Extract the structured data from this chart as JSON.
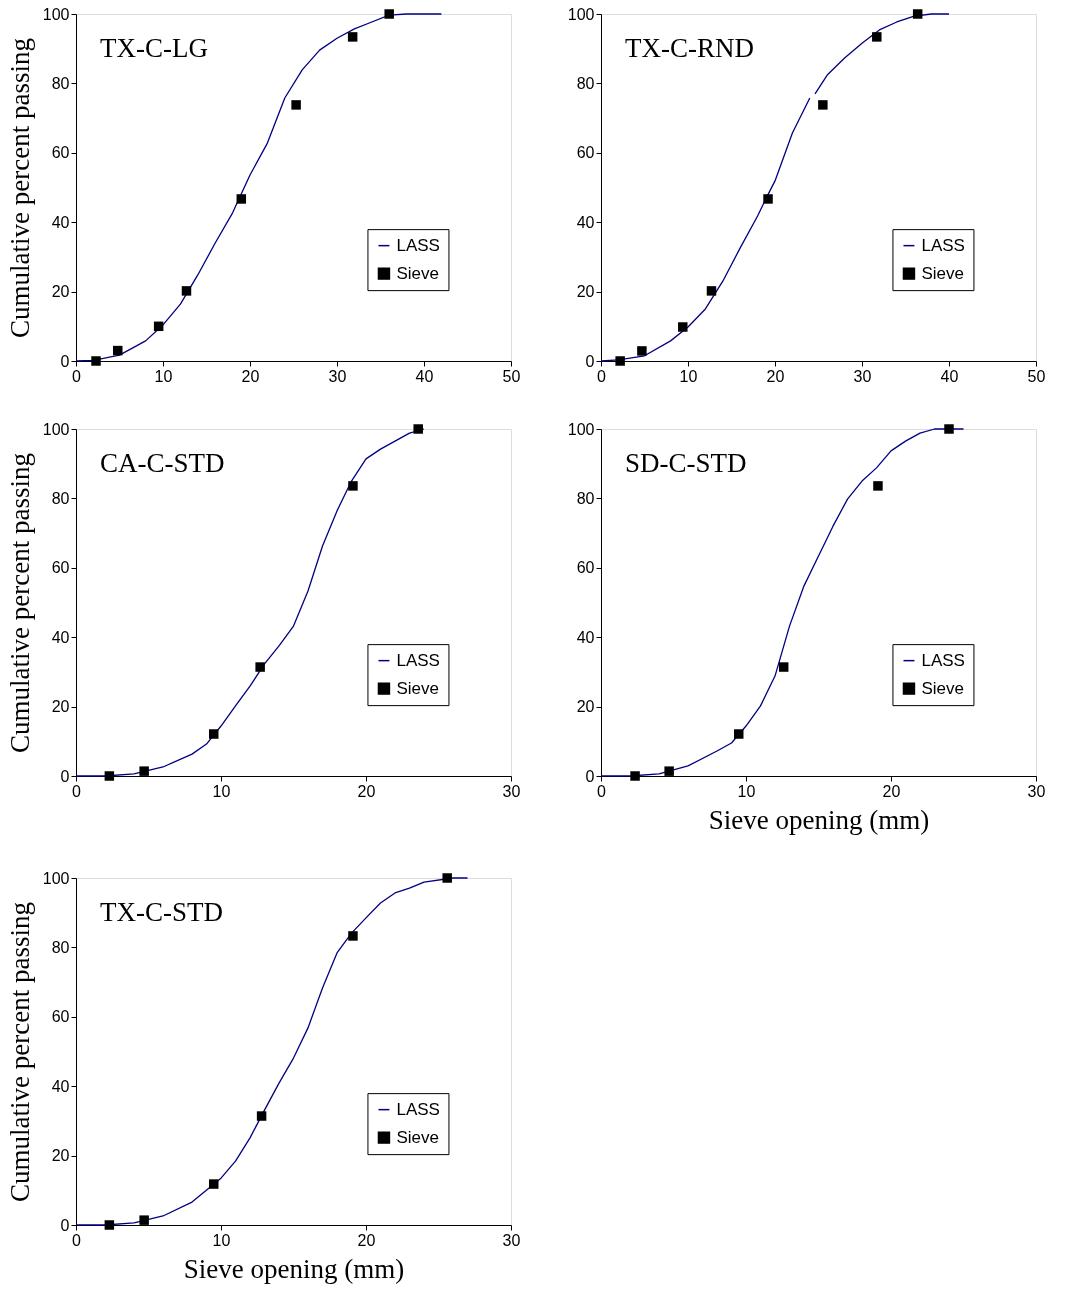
{
  "chart_data": [
    {
      "type": "line",
      "title": "TX-C-LG",
      "ylabel": "Cumulative percent passing",
      "xlim": [
        0,
        50
      ],
      "xticks": [
        0,
        10,
        20,
        30,
        40,
        50
      ],
      "ylim": [
        0,
        100
      ],
      "yticks": [
        0,
        20,
        40,
        60,
        80,
        100
      ],
      "grid": false,
      "legend": "right",
      "series": [
        {
          "name": "LASS",
          "color": "#000080",
          "marker": "none",
          "line_style": "solid",
          "x": [
            0,
            2,
            5,
            8,
            10,
            12,
            14,
            16,
            18,
            20,
            22,
            24,
            26,
            28,
            30,
            32,
            34,
            36,
            38,
            42
          ],
          "values": [
            0,
            0.2,
            1.7,
            5.8,
            10.4,
            16.4,
            24.8,
            34,
            42.7,
            53.6,
            62.8,
            75.8,
            83.9,
            89.6,
            93,
            95.7,
            97.7,
            99.7,
            100,
            100
          ]
        },
        {
          "name": "Sieve",
          "type": "scatter",
          "color": "#000000",
          "marker": "square",
          "x": [
            2.3,
            4.8,
            9.5,
            12.7,
            19,
            25.3,
            31.8,
            36
          ],
          "values": [
            0,
            3,
            10,
            20.2,
            46.7,
            73.8,
            93.4,
            100
          ]
        }
      ]
    },
    {
      "type": "line",
      "title": "TX-C-RND",
      "xlim": [
        0,
        50
      ],
      "xticks": [
        0,
        10,
        20,
        30,
        40,
        50
      ],
      "ylim": [
        0,
        100
      ],
      "yticks": [
        0,
        20,
        40,
        60,
        80,
        100
      ],
      "grid": false,
      "legend": "right",
      "series": [
        {
          "name": "LASS",
          "color": "#000080",
          "marker": "none",
          "line_style": "solid",
          "x": [
            0,
            2,
            5,
            8,
            10,
            12,
            14,
            16,
            18,
            19,
            20,
            22,
            24,
            24.3,
            24.6,
            26,
            28,
            30,
            32,
            34,
            36,
            38,
            40
          ],
          "values": [
            0,
            0.3,
            1.5,
            5.8,
            9.8,
            15,
            23,
            32.6,
            41.8,
            47,
            51.9,
            65.7,
            75.8,
            null,
            77,
            82.4,
            87.3,
            91.6,
            95.4,
            97.7,
            99.4,
            100,
            100
          ]
        },
        {
          "name": "Sieve",
          "type": "scatter",
          "color": "#000000",
          "marker": "square",
          "x": [
            2.2,
            4.7,
            9.4,
            12.7,
            19.2,
            25.5,
            31.7,
            36.4
          ],
          "values": [
            0,
            2.9,
            9.8,
            20.2,
            46.7,
            73.8,
            93.4,
            100
          ]
        }
      ]
    },
    {
      "type": "line",
      "title": "CA-C-STD",
      "ylabel": "Cumulative percent passing",
      "xlim": [
        0,
        30
      ],
      "xticks": [
        0,
        10,
        20,
        30
      ],
      "ylim": [
        0,
        100
      ],
      "yticks": [
        0,
        20,
        40,
        60,
        80,
        100
      ],
      "grid": false,
      "legend": "right",
      "series": [
        {
          "name": "LASS",
          "color": "#000080",
          "marker": "none",
          "line_style": "solid",
          "x": [
            0,
            2,
            4,
            6,
            8,
            9,
            10,
            11,
            12,
            13,
            14,
            15,
            16,
            17,
            18,
            19,
            20,
            21,
            22,
            23,
            24
          ],
          "values": [
            0,
            0,
            0.6,
            2.6,
            6.3,
            9.2,
            14.4,
            20.2,
            25.9,
            32.3,
            37.5,
            43.2,
            53.3,
            66.3,
            76.4,
            85,
            91.4,
            94.2,
            96.5,
            98.8,
            100
          ]
        },
        {
          "name": "Sieve",
          "type": "scatter",
          "color": "#000000",
          "marker": "square",
          "x": [
            2.3,
            4.7,
            9.5,
            12.7,
            19.1,
            23.6
          ],
          "values": [
            0,
            1.4,
            12.1,
            31.4,
            83.6,
            100
          ]
        }
      ]
    },
    {
      "type": "line",
      "title": "SD-C-STD",
      "xlabel": "Sieve opening (mm)",
      "xlim": [
        0,
        30
      ],
      "xticks": [
        0,
        10,
        20,
        30
      ],
      "ylim": [
        0,
        100
      ],
      "yticks": [
        0,
        20,
        40,
        60,
        80,
        100
      ],
      "grid": false,
      "legend": "right",
      "series": [
        {
          "name": "LASS",
          "color": "#000080",
          "marker": "none",
          "line_style": "solid",
          "x": [
            0,
            2,
            4,
            6,
            8,
            9,
            10,
            11,
            12,
            13,
            14,
            15,
            16,
            17,
            18,
            19,
            20,
            21,
            22,
            23,
            25
          ],
          "values": [
            0,
            0,
            0.6,
            2.9,
            7.2,
            9.5,
            14.4,
            20.2,
            28.8,
            43.2,
            54.8,
            63.4,
            72,
            79.8,
            85,
            88.8,
            93.7,
            96.5,
            98.8,
            100,
            100
          ]
        },
        {
          "name": "Sieve",
          "type": "scatter",
          "color": "#000000",
          "marker": "square",
          "x": [
            2.35,
            4.7,
            9.5,
            12.6,
            19.1,
            24
          ],
          "values": [
            0,
            1.4,
            12.1,
            31.4,
            83.6,
            100
          ]
        }
      ]
    },
    {
      "type": "line",
      "title": "TX-C-STD",
      "ylabel": "Cumulative percent passing",
      "xlabel": "Sieve opening (mm)",
      "xlim": [
        0,
        30
      ],
      "xticks": [
        0,
        10,
        20,
        30
      ],
      "ylim": [
        0,
        100
      ],
      "yticks": [
        0,
        20,
        40,
        60,
        80,
        100
      ],
      "grid": false,
      "legend": "right",
      "series": [
        {
          "name": "LASS",
          "color": "#000080",
          "marker": "none",
          "line_style": "solid",
          "x": [
            0,
            2,
            4,
            6,
            8,
            10,
            11,
            12,
            13,
            14,
            15,
            16,
            17,
            18,
            19,
            20,
            21,
            22,
            23,
            24,
            26,
            27
          ],
          "values": [
            0,
            0,
            0.6,
            2.6,
            6.6,
            13.5,
            18.4,
            25.1,
            33.1,
            40.9,
            48.1,
            56.8,
            68.3,
            78.4,
            84.1,
            88.5,
            92.8,
            95.7,
            97.1,
            98.8,
            100,
            100
          ]
        },
        {
          "name": "Sieve",
          "type": "scatter",
          "color": "#000000",
          "marker": "square",
          "x": [
            2.3,
            4.7,
            9.5,
            12.8,
            19.1,
            25.6
          ],
          "values": [
            0,
            1.4,
            11.8,
            31.4,
            83.3,
            100
          ]
        }
      ]
    }
  ]
}
